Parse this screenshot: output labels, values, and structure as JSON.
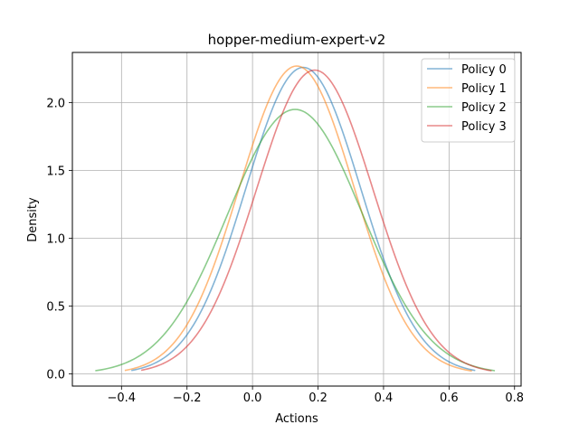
{
  "chart_data": {
    "type": "line",
    "title": "hopper-medium-expert-v2",
    "xlabel": "Actions",
    "ylabel": "Density",
    "xlim": [
      -0.55,
      0.82
    ],
    "ylim": [
      -0.09,
      2.37
    ],
    "xticks": [
      -0.4,
      -0.2,
      0.0,
      0.2,
      0.4,
      0.6,
      0.8
    ],
    "xtick_labels": [
      "−0.4",
      "−0.2",
      "0.0",
      "0.2",
      "0.4",
      "0.6",
      "0.8"
    ],
    "yticks": [
      0.0,
      0.5,
      1.0,
      1.5,
      2.0
    ],
    "ytick_labels": [
      "0.0",
      "0.5",
      "1.0",
      "1.5",
      "2.0"
    ],
    "grid": true,
    "legend_position": "top-right",
    "series": [
      {
        "name": "Policy 0",
        "color": "#1f77b4",
        "mean": 0.155,
        "sigma": 0.175,
        "peak": 2.26,
        "xrange": [
          -0.37,
          0.68
        ]
      },
      {
        "name": "Policy 1",
        "color": "#ff7f0e",
        "mean": 0.135,
        "sigma": 0.175,
        "peak": 2.27,
        "xrange": [
          -0.39,
          0.67
        ]
      },
      {
        "name": "Policy 2",
        "color": "#2ca02c",
        "mean": 0.13,
        "sigma": 0.205,
        "peak": 1.95,
        "xrange": [
          -0.48,
          0.74
        ]
      },
      {
        "name": "Policy 3",
        "color": "#d62728",
        "mean": 0.19,
        "sigma": 0.178,
        "peak": 2.24,
        "xrange": [
          -0.34,
          0.73
        ]
      }
    ]
  }
}
